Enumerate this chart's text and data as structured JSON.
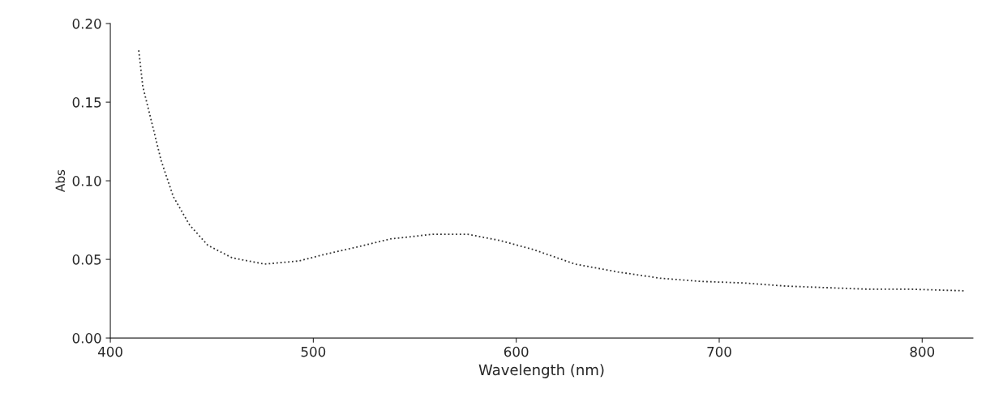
{
  "chart_data": {
    "type": "line",
    "xlabel": "Wavelength (nm)",
    "ylabel": "Abs",
    "xlim": [
      400,
      825
    ],
    "ylim": [
      0,
      0.2
    ],
    "xticks": [
      400,
      500,
      600,
      700,
      800
    ],
    "yticks": [
      {
        "value": 0,
        "label": "0.00"
      },
      {
        "value": 0.05,
        "label": "0.05"
      },
      {
        "value": 0.1,
        "label": "0.10"
      },
      {
        "value": 0.15,
        "label": "0.15"
      },
      {
        "value": 0.2,
        "label": "0.20"
      }
    ],
    "grid": false,
    "legend": false,
    "series": [
      {
        "color": "#333333",
        "line_style": "dotted",
        "x": [
          414,
          416,
          421,
          425,
          431,
          439,
          448,
          460,
          476,
          493,
          505,
          522,
          538,
          559,
          576,
          592,
          609,
          629,
          650,
          671,
          691,
          712,
          733,
          753,
          774,
          795,
          821
        ],
        "values": [
          0.183,
          0.16,
          0.134,
          0.113,
          0.09,
          0.072,
          0.059,
          0.051,
          0.047,
          0.049,
          0.053,
          0.058,
          0.063,
          0.066,
          0.066,
          0.062,
          0.056,
          0.047,
          0.042,
          0.038,
          0.036,
          0.035,
          0.033,
          0.032,
          0.031,
          0.031,
          0.03
        ]
      }
    ]
  }
}
